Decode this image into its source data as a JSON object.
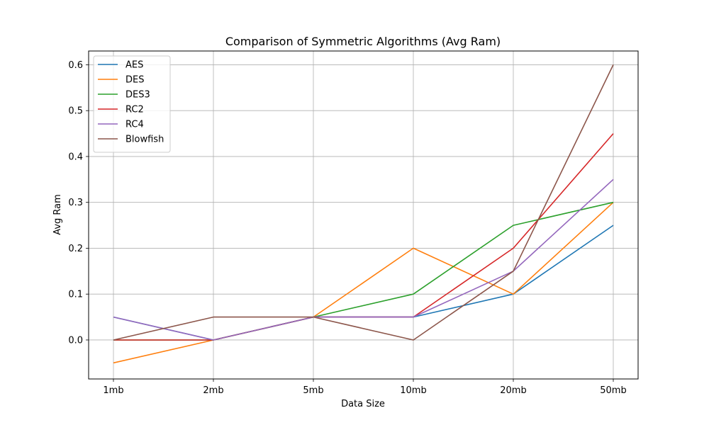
{
  "chart_data": {
    "type": "line",
    "title": "Comparison of Symmetric Algorithms (Avg Ram)",
    "xlabel": "Data Size",
    "ylabel": "Avg Ram",
    "categories": [
      "1mb",
      "2mb",
      "5mb",
      "10mb",
      "20mb",
      "50mb"
    ],
    "ylim": [
      -0.085,
      0.63
    ],
    "yticks": [
      0.0,
      0.1,
      0.2,
      0.3,
      0.4,
      0.5,
      0.6
    ],
    "ytick_labels": [
      "0.0",
      "0.1",
      "0.2",
      "0.3",
      "0.4",
      "0.5",
      "0.6"
    ],
    "grid": true,
    "legend_position": "top-left",
    "series": [
      {
        "name": "AES",
        "color": "#1f77b4",
        "values": [
          0.05,
          0.0,
          0.05,
          0.05,
          0.1,
          0.25
        ]
      },
      {
        "name": "DES",
        "color": "#ff7f0e",
        "values": [
          -0.05,
          0.0,
          0.05,
          0.2,
          0.1,
          0.3
        ]
      },
      {
        "name": "DES3",
        "color": "#2ca02c",
        "values": [
          0.0,
          0.0,
          0.05,
          0.1,
          0.25,
          0.3
        ]
      },
      {
        "name": "RC2",
        "color": "#d62728",
        "values": [
          0.0,
          0.0,
          0.05,
          0.05,
          0.2,
          0.45
        ]
      },
      {
        "name": "RC4",
        "color": "#9467bd",
        "values": [
          0.05,
          0.0,
          0.05,
          0.05,
          0.15,
          0.35
        ]
      },
      {
        "name": "Blowfish",
        "color": "#8c564b",
        "values": [
          0.0,
          0.05,
          0.05,
          0.0,
          0.15,
          0.6
        ]
      }
    ]
  }
}
